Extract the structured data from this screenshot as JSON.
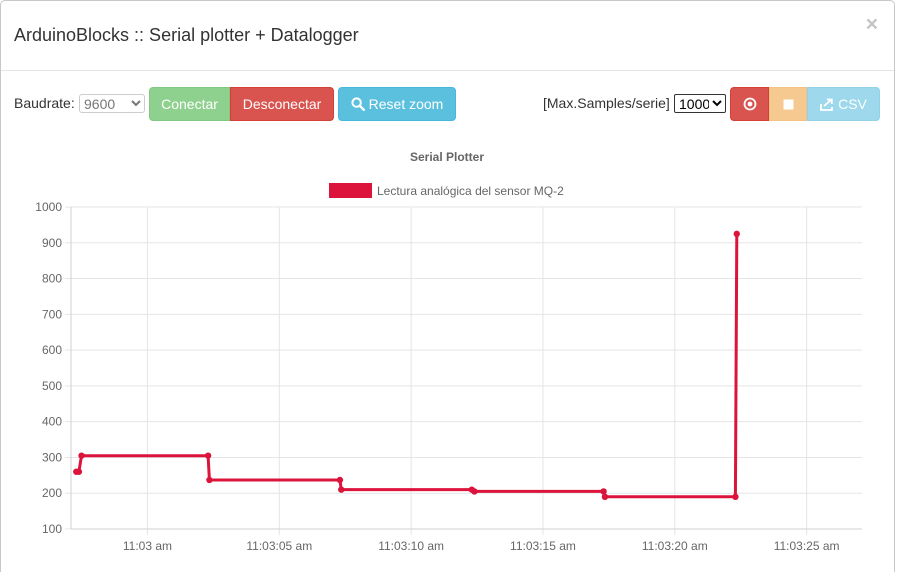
{
  "modal": {
    "title": "ArduinoBlocks :: Serial plotter + Datalogger",
    "close_symbol": "×"
  },
  "toolbar": {
    "baudrate_label": "Baudrate:",
    "baudrate_value": "9600",
    "connect_label": "Conectar",
    "disconnect_label": "Desconectar",
    "reset_zoom_label": "Reset zoom",
    "reset_zoom_icon": "search-icon",
    "max_samples_label": "[Max.Samples/serie]",
    "max_samples_value": "1000",
    "record_icon": "record-icon",
    "stop_icon": "stop-icon",
    "csv_icon": "export-icon",
    "csv_label": "CSV"
  },
  "colors": {
    "series": "#dc143c",
    "connect": "#8ed08e",
    "danger": "#d9534f",
    "info": "#5bc0de",
    "warning": "#f5c98f",
    "info_light": "#9ed8ec"
  },
  "chart_data": {
    "type": "line",
    "title": "Serial Plotter",
    "legend_position": "top-center",
    "grid": true,
    "ylim": [
      100,
      1000
    ],
    "yticks": [
      "1000",
      "900",
      "800",
      "700",
      "600",
      "500",
      "400",
      "300",
      "200",
      "100"
    ],
    "xticks": [
      "11:03 am",
      "11:03:05 am",
      "11:03:10 am",
      "11:03:15 am",
      "11:03:20 am",
      "11:03:25 am"
    ],
    "x_unit": "seconds after 11:03:00 am",
    "xlim": [
      -2.9,
      27.1
    ],
    "series": [
      {
        "name": "Lectura analógica del sensor MQ-2",
        "color": "#dc143c",
        "x": [
          -2.7,
          -2.6,
          -2.5,
          2.3,
          2.35,
          7.3,
          7.35,
          12.3,
          12.4,
          17.3,
          17.35,
          22.3,
          22.35
        ],
        "y": [
          260,
          260,
          305,
          305,
          237,
          237,
          210,
          210,
          205,
          205,
          190,
          190,
          925
        ]
      }
    ]
  }
}
